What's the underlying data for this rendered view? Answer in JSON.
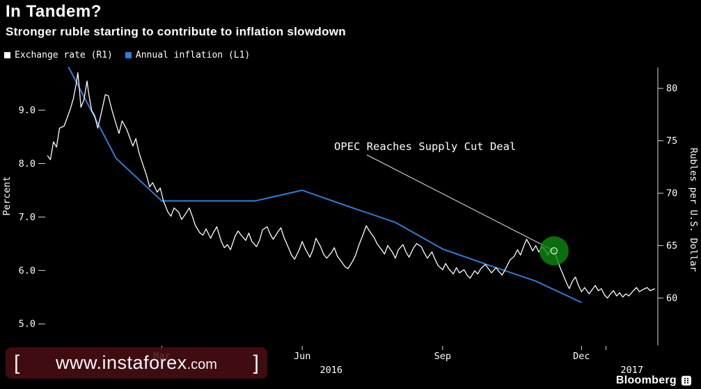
{
  "chart_data": {
    "type": "line",
    "title": "In Tandem?",
    "subtitle": "Stronger ruble starting to contribute to inflation slowdown",
    "background": "#000000",
    "legend_position": "top-left",
    "grid": false,
    "x_axis": {
      "epoch": "2016-01-01",
      "range_days": [
        0,
        400
      ],
      "month_ticks": [
        {
          "label": "Mar",
          "day": 75
        },
        {
          "label": "Jun",
          "day": 167
        },
        {
          "label": "Sep",
          "day": 259
        },
        {
          "label": "Dec",
          "day": 350
        }
      ],
      "year_ticks": [
        {
          "label": "2016",
          "day": 186
        },
        {
          "label": "2017",
          "day": 383
        }
      ],
      "boundary_tick_day": 366
    },
    "left_axis": {
      "title": "Percent",
      "ticks": [
        5,
        6,
        7,
        8,
        9
      ],
      "labels": [
        "5.0",
        "6.0",
        "7.0",
        "8.0",
        "9.0"
      ],
      "range": [
        4.6,
        9.8
      ]
    },
    "right_axis": {
      "title": "Rubles per U.S. Dollar",
      "ticks": [
        60,
        65,
        70,
        75,
        80
      ],
      "labels": [
        "60",
        "65",
        "70",
        "75",
        "80"
      ],
      "range": [
        55.5,
        82
      ]
    },
    "series": [
      {
        "name": "Annual inflation (L1)",
        "id": "annual-inflation-line",
        "axis": "left",
        "color": "#2f7dd1",
        "width": 2,
        "points": [
          [
            -17,
            12.9
          ],
          [
            14,
            9.8
          ],
          [
            45,
            8.1
          ],
          [
            75,
            7.3
          ],
          [
            105,
            7.3
          ],
          [
            136,
            7.3
          ],
          [
            167,
            7.5
          ],
          [
            197,
            7.2
          ],
          [
            228,
            6.9
          ],
          [
            259,
            6.4
          ],
          [
            289,
            6.1
          ],
          [
            320,
            5.8
          ],
          [
            350,
            5.4
          ]
        ]
      },
      {
        "name": "Exchange rate (R1)",
        "id": "exchange-rate-line",
        "axis": "right",
        "color": "#ffffff",
        "width": 1.3,
        "points": [
          [
            0,
            73.6
          ],
          [
            2,
            73.2
          ],
          [
            4,
            74.9
          ],
          [
            6,
            74.4
          ],
          [
            8,
            76.2
          ],
          [
            11,
            76.4
          ],
          [
            13,
            77.2
          ],
          [
            15,
            78.0
          ],
          [
            17,
            79.0
          ],
          [
            19,
            80.5
          ],
          [
            20,
            81.5
          ],
          [
            21,
            80.0
          ],
          [
            22,
            78.2
          ],
          [
            24,
            78.9
          ],
          [
            26,
            80.7
          ],
          [
            27,
            79.6
          ],
          [
            29,
            77.9
          ],
          [
            31,
            77.4
          ],
          [
            33,
            76.2
          ],
          [
            35,
            77.4
          ],
          [
            38,
            79.4
          ],
          [
            40,
            79.3
          ],
          [
            42,
            78.1
          ],
          [
            45,
            76.6
          ],
          [
            47,
            75.7
          ],
          [
            49,
            76.9
          ],
          [
            52,
            76.1
          ],
          [
            54,
            75.3
          ],
          [
            56,
            74.5
          ],
          [
            58,
            75.2
          ],
          [
            60,
            73.9
          ],
          [
            62,
            73.0
          ],
          [
            65,
            71.7
          ],
          [
            67,
            70.6
          ],
          [
            69,
            71.0
          ],
          [
            72,
            70.1
          ],
          [
            74,
            70.5
          ],
          [
            76,
            69.3
          ],
          [
            79,
            68.2
          ],
          [
            81,
            67.8
          ],
          [
            83,
            68.6
          ],
          [
            86,
            68.2
          ],
          [
            88,
            67.5
          ],
          [
            90,
            67.9
          ],
          [
            93,
            68.6
          ],
          [
            95,
            67.8
          ],
          [
            97,
            66.9
          ],
          [
            100,
            66.2
          ],
          [
            102,
            66.0
          ],
          [
            104,
            66.6
          ],
          [
            107,
            65.7
          ],
          [
            109,
            66.3
          ],
          [
            111,
            66.8
          ],
          [
            114,
            65.4
          ],
          [
            116,
            64.8
          ],
          [
            118,
            65.1
          ],
          [
            120,
            64.6
          ],
          [
            123,
            65.9
          ],
          [
            125,
            66.4
          ],
          [
            127,
            66.0
          ],
          [
            130,
            65.5
          ],
          [
            132,
            66.2
          ],
          [
            134,
            65.4
          ],
          [
            137,
            64.9
          ],
          [
            139,
            65.5
          ],
          [
            141,
            66.5
          ],
          [
            144,
            66.8
          ],
          [
            146,
            66.1
          ],
          [
            148,
            65.6
          ],
          [
            151,
            66.3
          ],
          [
            153,
            66.7
          ],
          [
            155,
            65.8
          ],
          [
            158,
            64.8
          ],
          [
            160,
            64.1
          ],
          [
            162,
            63.7
          ],
          [
            165,
            64.6
          ],
          [
            167,
            65.4
          ],
          [
            169,
            64.7
          ],
          [
            172,
            63.9
          ],
          [
            174,
            64.6
          ],
          [
            176,
            65.7
          ],
          [
            179,
            64.9
          ],
          [
            181,
            64.2
          ],
          [
            183,
            63.8
          ],
          [
            186,
            64.3
          ],
          [
            188,
            64.8
          ],
          [
            190,
            64.0
          ],
          [
            193,
            63.4
          ],
          [
            195,
            63.0
          ],
          [
            197,
            62.8
          ],
          [
            200,
            63.5
          ],
          [
            202,
            64.1
          ],
          [
            204,
            65.0
          ],
          [
            207,
            66.1
          ],
          [
            209,
            66.9
          ],
          [
            211,
            66.4
          ],
          [
            214,
            65.8
          ],
          [
            216,
            65.2
          ],
          [
            219,
            64.6
          ],
          [
            221,
            64.2
          ],
          [
            223,
            65.0
          ],
          [
            226,
            64.4
          ],
          [
            228,
            63.8
          ],
          [
            230,
            64.6
          ],
          [
            233,
            65.1
          ],
          [
            235,
            64.4
          ],
          [
            237,
            63.9
          ],
          [
            240,
            64.8
          ],
          [
            242,
            65.2
          ],
          [
            245,
            64.9
          ],
          [
            247,
            64.3
          ],
          [
            249,
            63.8
          ],
          [
            252,
            64.4
          ],
          [
            254,
            63.7
          ],
          [
            256,
            63.1
          ],
          [
            259,
            62.7
          ],
          [
            261,
            63.3
          ],
          [
            263,
            62.8
          ],
          [
            266,
            62.3
          ],
          [
            268,
            62.9
          ],
          [
            270,
            62.4
          ],
          [
            273,
            62.7
          ],
          [
            275,
            62.2
          ],
          [
            277,
            61.9
          ],
          [
            280,
            62.6
          ],
          [
            282,
            62.3
          ],
          [
            284,
            62.8
          ],
          [
            287,
            63.2
          ],
          [
            289,
            62.8
          ],
          [
            291,
            62.4
          ],
          [
            294,
            62.9
          ],
          [
            296,
            62.5
          ],
          [
            298,
            62.2
          ],
          [
            301,
            63.0
          ],
          [
            303,
            63.6
          ],
          [
            306,
            64.0
          ],
          [
            308,
            64.6
          ],
          [
            310,
            64.1
          ],
          [
            312,
            64.9
          ],
          [
            314,
            65.6
          ],
          [
            316,
            65.1
          ],
          [
            318,
            64.5
          ],
          [
            320,
            65.0
          ],
          [
            322,
            64.4
          ],
          [
            324,
            64.9
          ],
          [
            326,
            64.6
          ],
          [
            328,
            64.1
          ],
          [
            330,
            64.7
          ],
          [
            332,
            64.5
          ],
          [
            334,
            63.7
          ],
          [
            336,
            62.9
          ],
          [
            338,
            62.2
          ],
          [
            340,
            61.5
          ],
          [
            342,
            60.9
          ],
          [
            344,
            61.6
          ],
          [
            346,
            62.0
          ],
          [
            348,
            61.2
          ],
          [
            350,
            60.6
          ],
          [
            352,
            61.0
          ],
          [
            355,
            60.4
          ],
          [
            357,
            60.8
          ],
          [
            359,
            61.2
          ],
          [
            361,
            60.7
          ],
          [
            363,
            60.9
          ],
          [
            365,
            60.3
          ],
          [
            367,
            60.0
          ],
          [
            369,
            60.4
          ],
          [
            371,
            60.7
          ],
          [
            373,
            60.2
          ],
          [
            375,
            60.5
          ],
          [
            377,
            60.1
          ],
          [
            379,
            60.4
          ],
          [
            381,
            60.2
          ],
          [
            384,
            60.7
          ],
          [
            386,
            61.0
          ],
          [
            388,
            60.6
          ],
          [
            390,
            60.8
          ],
          [
            393,
            61.0
          ],
          [
            395,
            60.7
          ],
          [
            398,
            60.9
          ]
        ]
      }
    ],
    "annotation": {
      "text": "OPEC Reaches Supply Cut Deal",
      "color": "#78c432"
    },
    "marker": {
      "series": "Exchange rate (R1)",
      "day": 332,
      "value": 64.5,
      "color": "#0c8a12"
    }
  },
  "watermark": {
    "bracket_left": "[",
    "domain": "www.instaforex",
    "tld": ".com",
    "bracket_right": "]"
  },
  "footer": {
    "brand": "Bloomberg"
  }
}
